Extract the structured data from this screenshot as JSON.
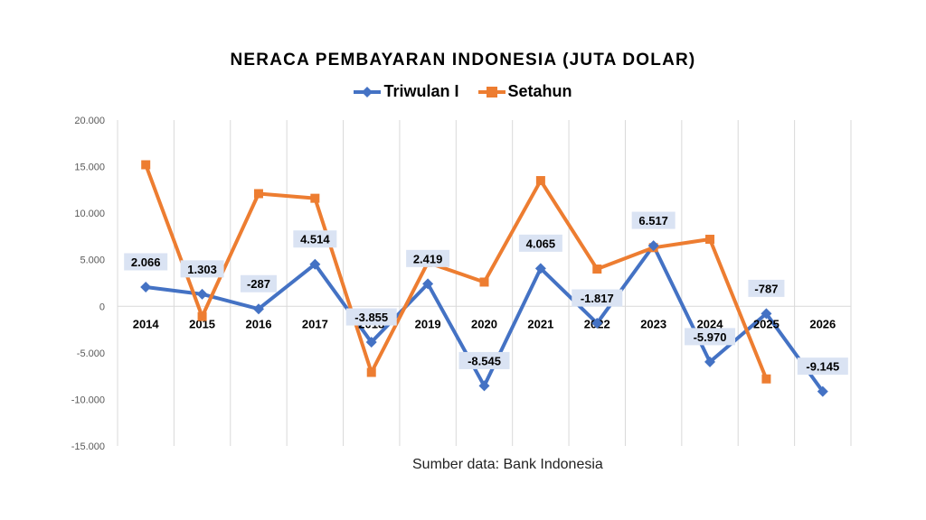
{
  "chart_data": {
    "type": "line",
    "title": "NERACA PEMBAYARAN INDONESIA (JUTA DOLAR)",
    "categories": [
      "2014",
      "2015",
      "2016",
      "2017",
      "2018",
      "2019",
      "2020",
      "2021",
      "2022",
      "2023",
      "2024",
      "2025",
      "2026"
    ],
    "ylim": [
      -15000,
      20000
    ],
    "yticks": [
      20000,
      15000,
      10000,
      5000,
      0,
      -5000,
      -10000,
      -15000
    ],
    "ytick_labels": [
      "20.000",
      "15.000",
      "10.000",
      "5.000",
      "0",
      "-5.000",
      "-10.000",
      "-15.000"
    ],
    "grid": "vertical",
    "legend": "top-center",
    "series": [
      {
        "name": "Triwulan I",
        "color": "#4472C4",
        "marker": "diamond",
        "values": [
          2066,
          1303,
          -287,
          4514,
          -3855,
          2419,
          -8545,
          4065,
          -1817,
          6517,
          -5970,
          -787,
          -9145
        ],
        "labels": [
          "2.066",
          "1.303",
          "-287",
          "4.514",
          "-3.855",
          "2.419",
          "-8.545",
          "4.065",
          "-1.817",
          "6.517",
          "-5.970",
          "-787",
          "-9.145"
        ]
      },
      {
        "name": "Setahun",
        "color": "#ED7D31",
        "marker": "square",
        "values": [
          15200,
          -1100,
          12100,
          11600,
          -7100,
          4700,
          2600,
          13500,
          4000,
          6300,
          7200,
          -7800,
          null
        ]
      }
    ]
  },
  "source": "Sumber data: Bank Indonesia"
}
